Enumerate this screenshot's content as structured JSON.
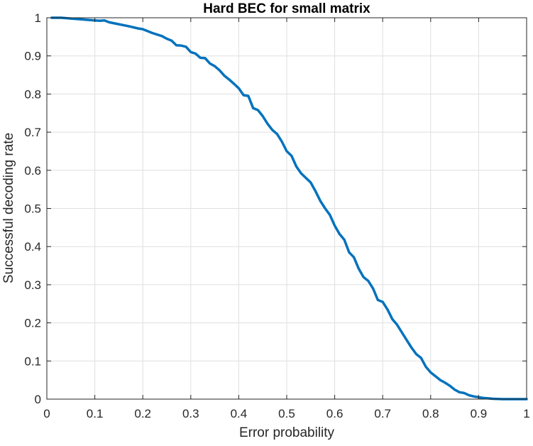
{
  "chart_data": {
    "type": "line",
    "title": "Hard BEC for small matrix",
    "xlabel": "Error probability",
    "ylabel": "Successful decoding rate",
    "xlim": [
      0,
      1
    ],
    "ylim": [
      0,
      1
    ],
    "xticks": [
      "0",
      "0.1",
      "0.2",
      "0.3",
      "0.4",
      "0.5",
      "0.6",
      "0.7",
      "0.8",
      "0.9",
      "1"
    ],
    "yticks": [
      "0",
      "0.1",
      "0.2",
      "0.3",
      "0.4",
      "0.5",
      "0.6",
      "0.7",
      "0.8",
      "0.9",
      "1"
    ],
    "grid": true,
    "legend": "none",
    "series": [
      {
        "color": "#0072BD",
        "x": [
          0.01,
          0.03,
          0.05,
          0.07,
          0.09,
          0.11,
          0.12,
          0.13,
          0.15,
          0.17,
          0.19,
          0.2,
          0.22,
          0.24,
          0.25,
          0.26,
          0.27,
          0.28,
          0.29,
          0.3,
          0.31,
          0.32,
          0.33,
          0.34,
          0.35,
          0.36,
          0.37,
          0.38,
          0.39,
          0.4,
          0.41,
          0.42,
          0.43,
          0.44,
          0.45,
          0.46,
          0.47,
          0.48,
          0.49,
          0.5,
          0.51,
          0.52,
          0.53,
          0.54,
          0.55,
          0.56,
          0.57,
          0.58,
          0.59,
          0.6,
          0.61,
          0.62,
          0.63,
          0.64,
          0.65,
          0.66,
          0.67,
          0.68,
          0.69,
          0.7,
          0.71,
          0.72,
          0.73,
          0.74,
          0.75,
          0.76,
          0.77,
          0.78,
          0.79,
          0.8,
          0.81,
          0.82,
          0.83,
          0.84,
          0.85,
          0.86,
          0.87,
          0.88,
          0.89,
          0.9,
          0.91,
          0.92,
          0.93,
          0.95,
          0.97,
          0.99,
          1.0
        ],
        "y": [
          1.0,
          1.0,
          0.998,
          0.996,
          0.994,
          0.992,
          0.993,
          0.988,
          0.983,
          0.978,
          0.972,
          0.97,
          0.96,
          0.952,
          0.945,
          0.94,
          0.928,
          0.927,
          0.924,
          0.91,
          0.906,
          0.895,
          0.894,
          0.88,
          0.873,
          0.862,
          0.848,
          0.838,
          0.827,
          0.815,
          0.797,
          0.795,
          0.763,
          0.758,
          0.742,
          0.722,
          0.706,
          0.695,
          0.675,
          0.65,
          0.638,
          0.61,
          0.592,
          0.58,
          0.568,
          0.545,
          0.52,
          0.5,
          0.483,
          0.455,
          0.433,
          0.418,
          0.385,
          0.372,
          0.342,
          0.32,
          0.31,
          0.29,
          0.26,
          0.255,
          0.235,
          0.21,
          0.195,
          0.175,
          0.155,
          0.135,
          0.118,
          0.108,
          0.085,
          0.07,
          0.06,
          0.05,
          0.043,
          0.035,
          0.025,
          0.018,
          0.016,
          0.01,
          0.007,
          0.005,
          0.003,
          0.002,
          0.001,
          0.0,
          0.0,
          0.0,
          0.0
        ]
      }
    ]
  }
}
